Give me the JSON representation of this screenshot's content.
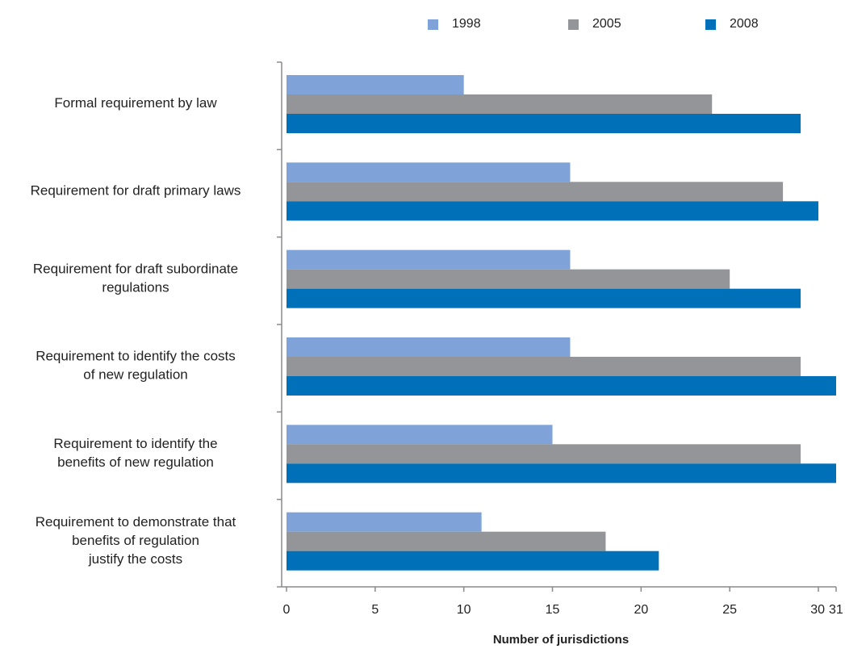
{
  "chart_data": {
    "type": "bar",
    "orientation": "horizontal",
    "categories": [
      [
        "Formal requirement by law"
      ],
      [
        "Requirement for draft primary laws"
      ],
      [
        "Requirement for draft subordinate",
        "regulations"
      ],
      [
        "Requirement to identify the costs",
        "of new regulation"
      ],
      [
        "Requirement to identify the",
        "benefits of new regulation"
      ],
      [
        "Requirement to demonstrate that",
        "benefits of regulation",
        "justify the costs"
      ]
    ],
    "series": [
      {
        "name": "1998",
        "color": "#7fa3d8",
        "values": [
          10,
          16,
          16,
          16,
          15,
          11
        ]
      },
      {
        "name": "2005",
        "color": "#939598",
        "values": [
          24,
          28,
          25,
          29,
          29,
          18
        ]
      },
      {
        "name": "2008",
        "color": "#0070b8",
        "values": [
          29,
          30,
          29,
          31,
          31,
          21
        ]
      }
    ],
    "xticks": [
      "0",
      "5",
      "10",
      "15",
      "20",
      "25",
      "30",
      "31"
    ],
    "xtick_values": [
      0,
      5,
      10,
      15,
      20,
      25,
      30,
      31
    ],
    "xlim": [
      0,
      31
    ],
    "xlabel": "Number of jurisdictions",
    "grid": false,
    "legend_position": "top"
  }
}
